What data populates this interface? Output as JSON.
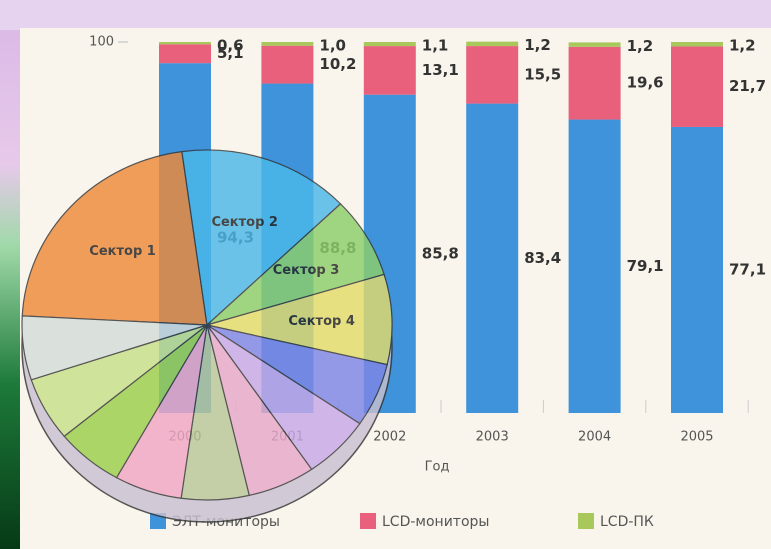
{
  "chart_data": [
    {
      "type": "bar",
      "stacked": true,
      "categories": [
        "2000",
        "2001",
        "2002",
        "2003",
        "2004",
        "2005"
      ],
      "x_label": "Год",
      "ylim": [
        0,
        100
      ],
      "yticks": [
        100
      ],
      "series": [
        {
          "name": "ЭЛТ-мониторы",
          "color": "#3f93da",
          "values": [
            94.3,
            88.8,
            85.8,
            83.4,
            79.1,
            77.1
          ],
          "value_labels": [
            "94,3",
            "88,8",
            "85,8",
            "83,4",
            "79,1",
            "77,1"
          ]
        },
        {
          "name": "LCD-мониторы",
          "color": "#e8607c",
          "values": [
            5.1,
            10.2,
            13.1,
            15.5,
            19.6,
            21.7
          ],
          "value_labels": [
            "5,1",
            "10,2",
            "13,1",
            "15,5",
            "19,6",
            "21,7"
          ]
        },
        {
          "name": "LCD-ПК",
          "color": "#a9c85c",
          "values": [
            0.6,
            1.0,
            1.1,
            1.2,
            1.2,
            1.2
          ],
          "value_labels": [
            "0,6",
            "1,0",
            "1,1",
            "1,2",
            "1,2",
            "1,2"
          ]
        }
      ]
    },
    {
      "type": "pie",
      "categories": [
        "Сектор 1",
        "Сектор 2",
        "Сектор 3",
        "Сектор 4",
        null,
        null,
        null,
        null,
        null,
        null,
        null,
        null
      ],
      "values": [
        22,
        15,
        7.5,
        8.3,
        5.9,
        5.9,
        5.9,
        5.9,
        5.9,
        5.9,
        5.9,
        5.9
      ],
      "colors": [
        "#ee8a3a",
        "#4bb8e8",
        "#8ccf6a",
        "#e2dc6a",
        "#7f86e6",
        "#c7a7e8",
        "#e7a8c8",
        "#b9c79a",
        "#f0a6c4",
        "#9ccf4c",
        "#c8e08a",
        "#d4dcd8"
      ]
    }
  ]
}
